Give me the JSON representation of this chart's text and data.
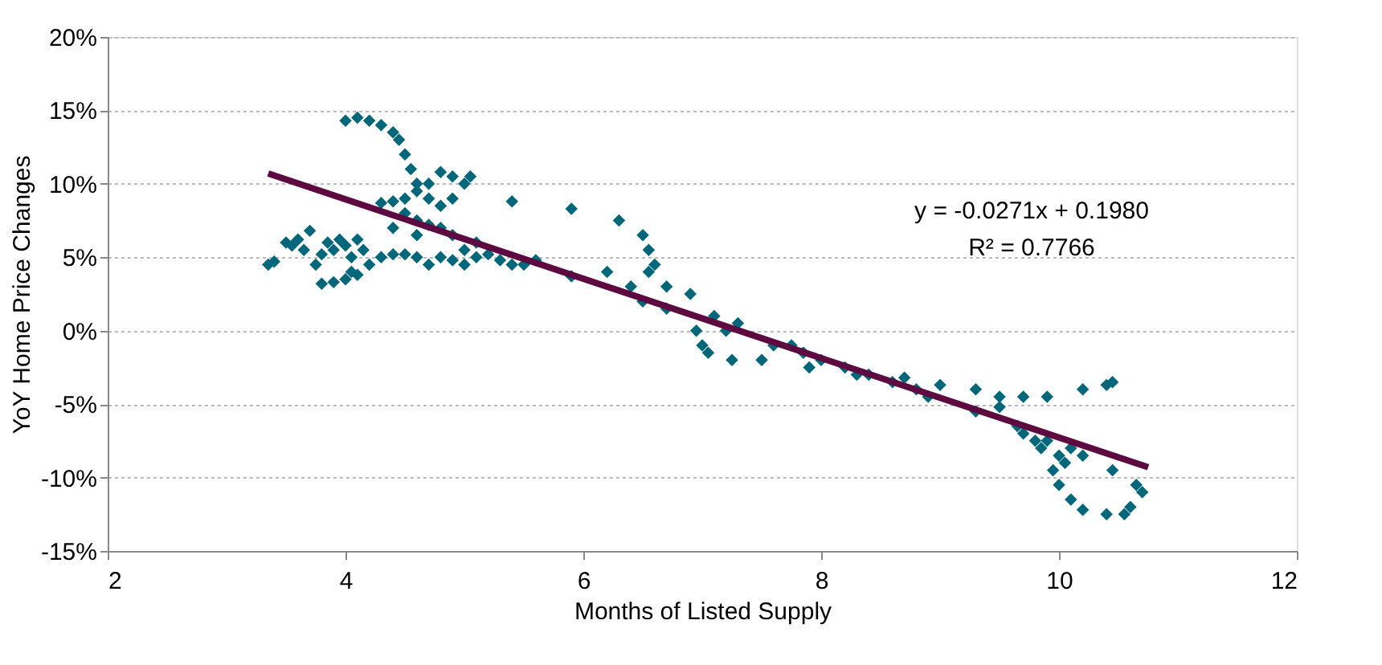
{
  "chart_data": {
    "type": "scatter",
    "xlabel": "Months of Listed Supply",
    "ylabel": "YoY Home Price Changes",
    "xlim": [
      2,
      12
    ],
    "xticks": [
      2,
      4,
      6,
      8,
      10,
      12
    ],
    "ylim": [
      -0.15,
      0.2
    ],
    "yticks": [
      {
        "value": -0.15,
        "label": "-15%"
      },
      {
        "value": -0.1,
        "label": "-10%"
      },
      {
        "value": -0.05,
        "label": "-5%"
      },
      {
        "value": 0,
        "label": "0%"
      },
      {
        "value": 0.05,
        "label": "5%"
      },
      {
        "value": 0.1,
        "label": "10%"
      },
      {
        "value": 0.15,
        "label": "15%"
      },
      {
        "value": 0.2,
        "label": "20%"
      }
    ],
    "grid": "y",
    "annotations": [
      "y = -0.0271x + 0.1980",
      "R² = 0.7766"
    ],
    "series": [
      {
        "marker": "diamond",
        "color": "#00677a",
        "x": [
          3.35,
          3.4,
          3.5,
          3.55,
          3.6,
          3.65,
          3.7,
          3.75,
          3.8,
          3.85,
          3.9,
          3.95,
          4.0,
          4.05,
          4.1,
          4.15,
          3.8,
          3.9,
          4.0,
          4.05,
          4.1,
          4.2,
          4.3,
          4.4,
          4.5,
          4.6,
          4.7,
          4.8,
          4.9,
          5.0,
          5.1,
          5.2,
          5.3,
          5.4,
          5.5,
          5.6,
          4.0,
          4.1,
          4.2,
          4.3,
          4.4,
          4.45,
          4.5,
          4.55,
          4.6,
          4.7,
          4.8,
          4.9,
          5.0,
          5.05,
          4.9,
          4.8,
          4.7,
          4.6,
          4.5,
          4.4,
          4.3,
          4.5,
          4.6,
          4.7,
          4.8,
          4.9,
          5.0,
          5.1,
          4.4,
          4.6,
          5.4,
          5.9,
          6.3,
          6.5,
          6.55,
          6.6,
          6.55,
          6.7,
          6.9,
          6.4,
          6.2,
          5.9,
          6.5,
          6.7,
          6.95,
          7.0,
          7.05,
          7.1,
          7.2,
          7.25,
          7.3,
          7.5,
          7.6,
          7.75,
          7.85,
          7.9,
          8.0,
          8.2,
          8.3,
          8.4,
          8.6,
          8.7,
          8.8,
          8.9,
          9.0,
          9.3,
          9.5,
          9.7,
          9.9,
          10.2,
          10.4,
          10.45,
          9.3,
          9.5,
          9.65,
          9.7,
          9.8,
          9.85,
          9.9,
          10.0,
          10.05,
          10.1,
          9.95,
          10.0,
          10.1,
          10.2,
          10.4,
          10.55,
          10.6,
          10.7,
          10.65,
          10.45,
          10.2
        ],
        "values": [
          0.045,
          0.047,
          0.06,
          0.058,
          0.062,
          0.055,
          0.068,
          0.045,
          0.052,
          0.06,
          0.055,
          0.062,
          0.058,
          0.05,
          0.062,
          0.055,
          0.032,
          0.033,
          0.035,
          0.04,
          0.038,
          0.045,
          0.05,
          0.052,
          0.052,
          0.05,
          0.045,
          0.05,
          0.048,
          0.045,
          0.05,
          0.052,
          0.048,
          0.045,
          0.045,
          0.048,
          0.143,
          0.145,
          0.143,
          0.14,
          0.135,
          0.13,
          0.12,
          0.11,
          0.1,
          0.09,
          0.085,
          0.09,
          0.1,
          0.105,
          0.105,
          0.108,
          0.1,
          0.095,
          0.09,
          0.088,
          0.087,
          0.08,
          0.075,
          0.072,
          0.07,
          0.065,
          0.055,
          0.06,
          0.07,
          0.065,
          0.088,
          0.083,
          0.075,
          0.065,
          0.055,
          0.045,
          0.04,
          0.03,
          0.025,
          0.03,
          0.04,
          0.037,
          0.02,
          0.015,
          0.0,
          -0.01,
          -0.015,
          0.01,
          0.0,
          -0.02,
          0.005,
          -0.02,
          -0.01,
          -0.01,
          -0.015,
          -0.025,
          -0.02,
          -0.025,
          -0.03,
          -0.03,
          -0.035,
          -0.032,
          -0.04,
          -0.045,
          -0.037,
          -0.04,
          -0.045,
          -0.045,
          -0.045,
          -0.04,
          -0.037,
          -0.035,
          -0.055,
          -0.052,
          -0.065,
          -0.07,
          -0.075,
          -0.08,
          -0.075,
          -0.085,
          -0.09,
          -0.08,
          -0.095,
          -0.105,
          -0.115,
          -0.122,
          -0.125,
          -0.125,
          -0.12,
          -0.11,
          -0.105,
          -0.095,
          -0.085
        ]
      },
      {
        "type": "line",
        "line_style": "solid",
        "color": "#5c0a3f",
        "x": [
          3.35,
          10.75
        ],
        "values": [
          0.107,
          -0.093
        ]
      }
    ]
  }
}
